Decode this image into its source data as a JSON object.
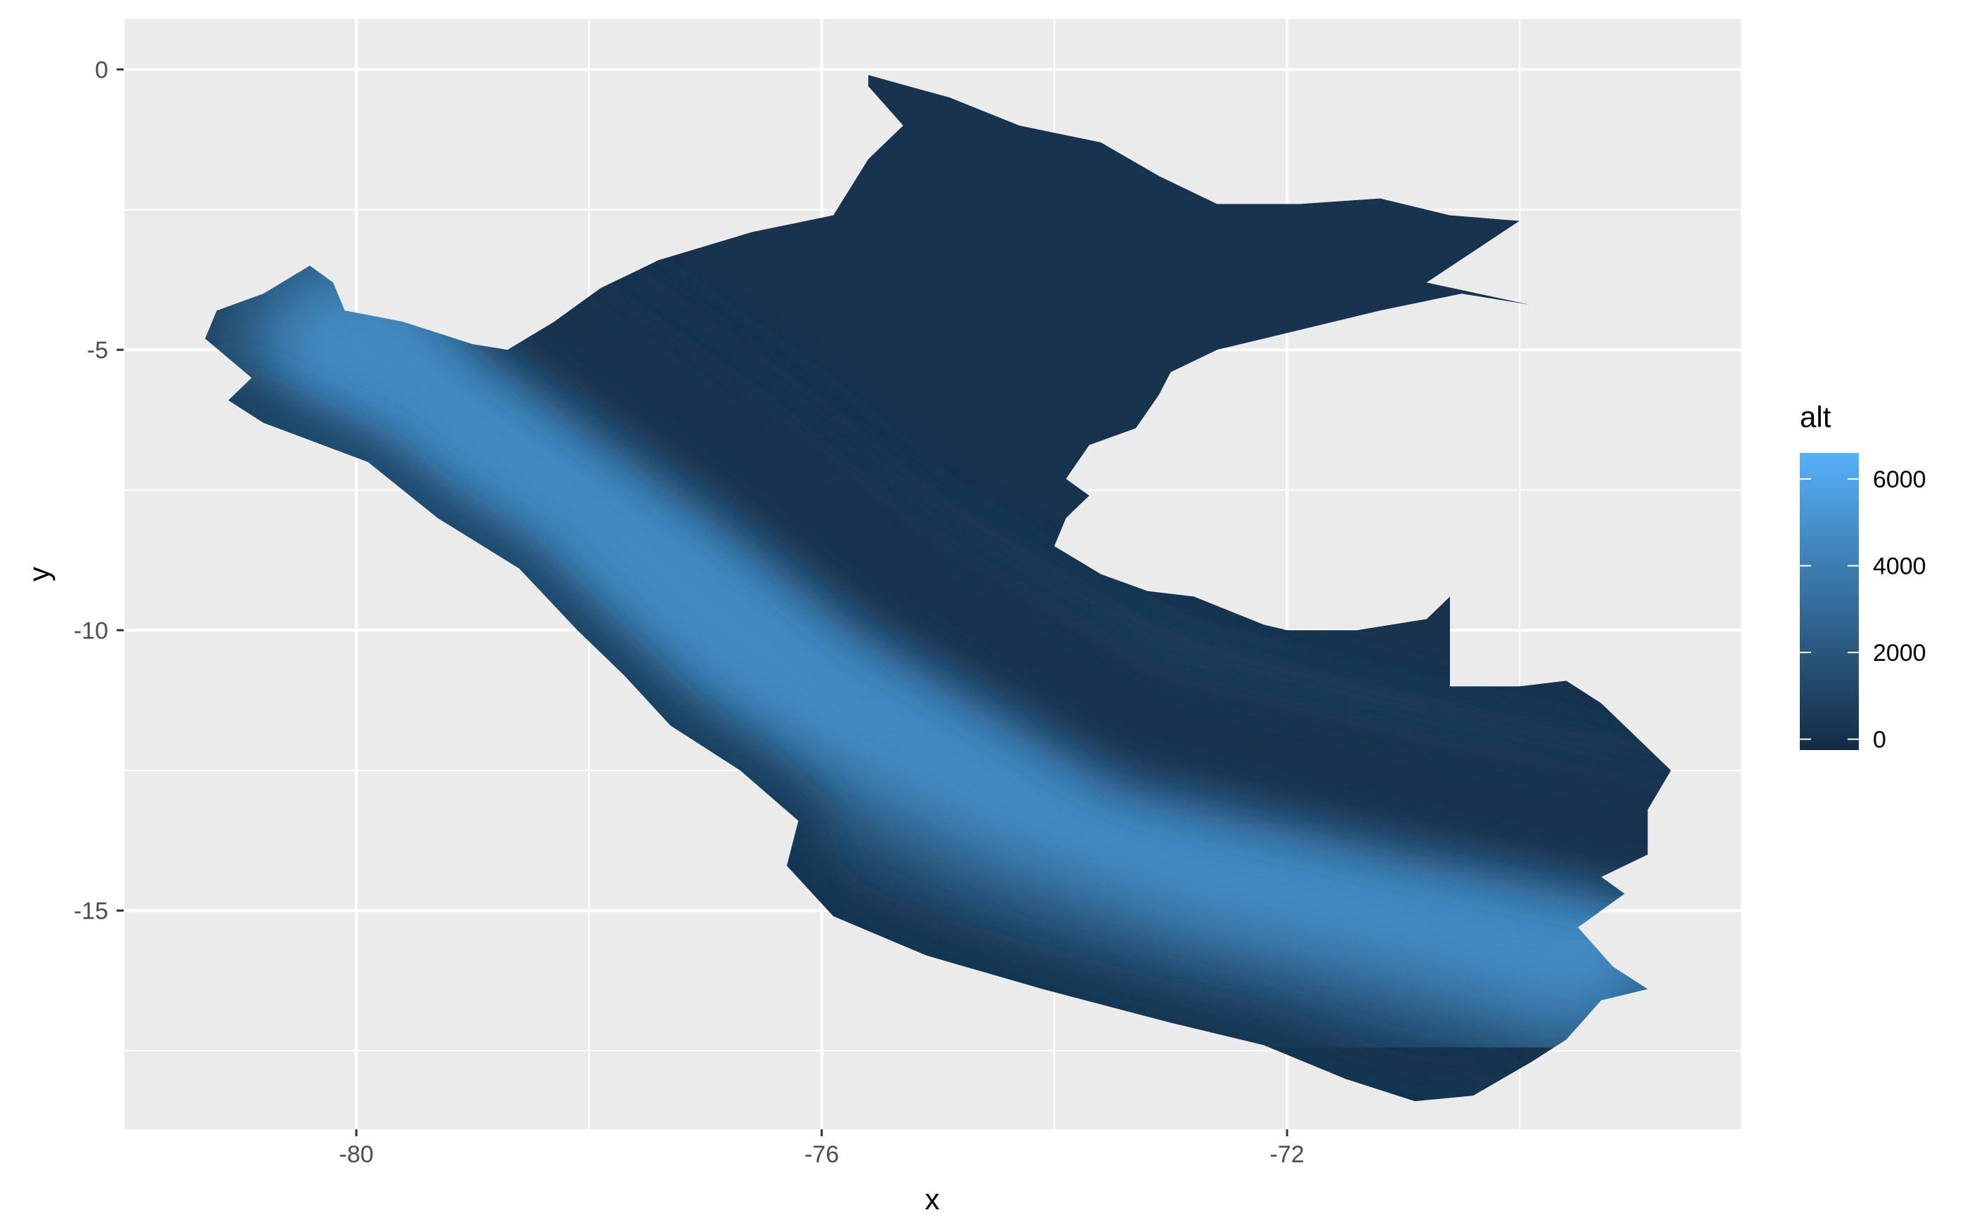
{
  "chart_data": {
    "type": "heatmap",
    "title": "",
    "xlabel": "x",
    "ylabel": "y",
    "xlim": [
      -82.0,
      -68.1
    ],
    "ylim": [
      -18.9,
      0.9
    ],
    "x_ticks": [
      -80,
      -76,
      -72
    ],
    "x_tick_labels": [
      "-80",
      "-76",
      "-72"
    ],
    "y_ticks": [
      0,
      -5,
      -10,
      -15
    ],
    "y_tick_labels": [
      "0",
      "-5",
      "-10",
      "-15"
    ],
    "x_minor": [
      -82,
      -78,
      -74,
      -70
    ],
    "y_minor": [
      -2.5,
      -7.5,
      -12.5,
      -17.5
    ],
    "grid": true,
    "legend": {
      "title": "alt",
      "placement": "right",
      "range": [
        -250,
        6600
      ],
      "ticks": [
        0,
        2000,
        4000,
        6000
      ],
      "tick_labels": [
        "0",
        "2000",
        "4000",
        "6000"
      ],
      "low_color": "#132b43",
      "high_color": "#56b1f7"
    },
    "panel_color": "#ebebeb",
    "grid_color": "#ffffff",
    "region": {
      "outline": [
        [
          -75.6,
          -0.1
        ],
        [
          -74.9,
          -0.5
        ],
        [
          -74.3,
          -1.0
        ],
        [
          -73.6,
          -1.3
        ],
        [
          -73.1,
          -1.9
        ],
        [
          -72.6,
          -2.4
        ],
        [
          -71.9,
          -2.4
        ],
        [
          -71.2,
          -2.3
        ],
        [
          -70.6,
          -2.6
        ],
        [
          -70.0,
          -2.7
        ],
        [
          -70.8,
          -3.8
        ],
        [
          -69.9,
          -4.2
        ],
        [
          -70.5,
          -4.0
        ],
        [
          -71.2,
          -4.3
        ],
        [
          -72.0,
          -4.7
        ],
        [
          -72.6,
          -5.0
        ],
        [
          -73.0,
          -5.4
        ],
        [
          -73.1,
          -5.8
        ],
        [
          -73.3,
          -6.4
        ],
        [
          -73.7,
          -6.7
        ],
        [
          -73.9,
          -7.3
        ],
        [
          -73.7,
          -7.6
        ],
        [
          -73.9,
          -8.0
        ],
        [
          -74.0,
          -8.5
        ],
        [
          -73.6,
          -9.0
        ],
        [
          -73.2,
          -9.3
        ],
        [
          -72.8,
          -9.4
        ],
        [
          -72.2,
          -9.9
        ],
        [
          -72.0,
          -10.0
        ],
        [
          -71.4,
          -10.0
        ],
        [
          -70.8,
          -9.8
        ],
        [
          -70.6,
          -9.4
        ],
        [
          -70.6,
          -11.0
        ],
        [
          -70.0,
          -11.0
        ],
        [
          -69.6,
          -10.9
        ],
        [
          -69.3,
          -11.3
        ],
        [
          -68.7,
          -12.5
        ],
        [
          -68.9,
          -13.2
        ],
        [
          -68.9,
          -14.0
        ],
        [
          -69.3,
          -14.4
        ],
        [
          -69.1,
          -14.7
        ],
        [
          -69.5,
          -15.3
        ],
        [
          -69.2,
          -16.0
        ],
        [
          -68.9,
          -16.4
        ],
        [
          -69.3,
          -16.6
        ],
        [
          -69.6,
          -17.3
        ],
        [
          -69.9,
          -17.7
        ],
        [
          -70.4,
          -18.3
        ],
        [
          -70.9,
          -18.4
        ],
        [
          -71.5,
          -18.0
        ],
        [
          -72.2,
          -17.4
        ],
        [
          -73.0,
          -17.0
        ],
        [
          -74.1,
          -16.4
        ],
        [
          -75.1,
          -15.8
        ],
        [
          -75.9,
          -15.1
        ],
        [
          -76.3,
          -14.2
        ],
        [
          -76.2,
          -13.4
        ],
        [
          -76.7,
          -12.5
        ],
        [
          -77.3,
          -11.7
        ],
        [
          -77.7,
          -10.8
        ],
        [
          -78.1,
          -10.0
        ],
        [
          -78.6,
          -8.9
        ],
        [
          -79.3,
          -8.0
        ],
        [
          -79.9,
          -7.0
        ],
        [
          -80.8,
          -6.3
        ],
        [
          -81.1,
          -5.9
        ],
        [
          -80.9,
          -5.5
        ],
        [
          -81.3,
          -4.8
        ],
        [
          -81.2,
          -4.3
        ],
        [
          -80.8,
          -4.0
        ],
        [
          -80.4,
          -3.5
        ],
        [
          -80.2,
          -3.8
        ],
        [
          -80.1,
          -4.3
        ],
        [
          -79.6,
          -4.5
        ],
        [
          -79.0,
          -4.9
        ],
        [
          -78.7,
          -5.0
        ],
        [
          -78.3,
          -4.5
        ],
        [
          -77.9,
          -3.9
        ],
        [
          -77.4,
          -3.4
        ],
        [
          -76.6,
          -2.9
        ],
        [
          -75.9,
          -2.6
        ],
        [
          -75.6,
          -1.6
        ],
        [
          -75.3,
          -1.0
        ],
        [
          -75.6,
          -0.3
        ]
      ],
      "coast_line": [
        [
          -81.1,
          -5.9
        ],
        [
          -79.9,
          -7.0
        ],
        [
          -79.3,
          -8.0
        ],
        [
          -78.6,
          -8.9
        ],
        [
          -78.1,
          -10.0
        ],
        [
          -77.7,
          -10.8
        ],
        [
          -77.3,
          -11.7
        ],
        [
          -76.7,
          -12.5
        ],
        [
          -76.2,
          -13.4
        ],
        [
          -76.3,
          -14.2
        ],
        [
          -75.9,
          -15.1
        ],
        [
          -75.1,
          -15.8
        ],
        [
          -74.1,
          -16.4
        ],
        [
          -73.0,
          -17.0
        ],
        [
          -72.2,
          -17.4
        ],
        [
          -71.5,
          -18.0
        ],
        [
          -70.9,
          -18.4
        ],
        [
          -70.4,
          -18.3
        ]
      ],
      "ridge_line": [
        [
          -80.0,
          -5.2
        ],
        [
          -79.0,
          -6.6
        ],
        [
          -77.7,
          -8.5
        ],
        [
          -76.2,
          -10.5
        ],
        [
          -74.3,
          -12.5
        ],
        [
          -72.6,
          -13.8
        ],
        [
          -70.8,
          -14.7
        ],
        [
          -69.6,
          -15.4
        ]
      ],
      "lowland_line": [
        [
          -78.5,
          -4.0
        ],
        [
          -76.6,
          -6.8
        ],
        [
          -75.3,
          -9.0
        ],
        [
          -73.2,
          -11.6
        ],
        [
          -71.0,
          -12.7
        ],
        [
          -68.9,
          -13.6
        ]
      ],
      "coast_alt": 0,
      "ridge_alt": 4600,
      "lowland_alt": 150
    }
  }
}
